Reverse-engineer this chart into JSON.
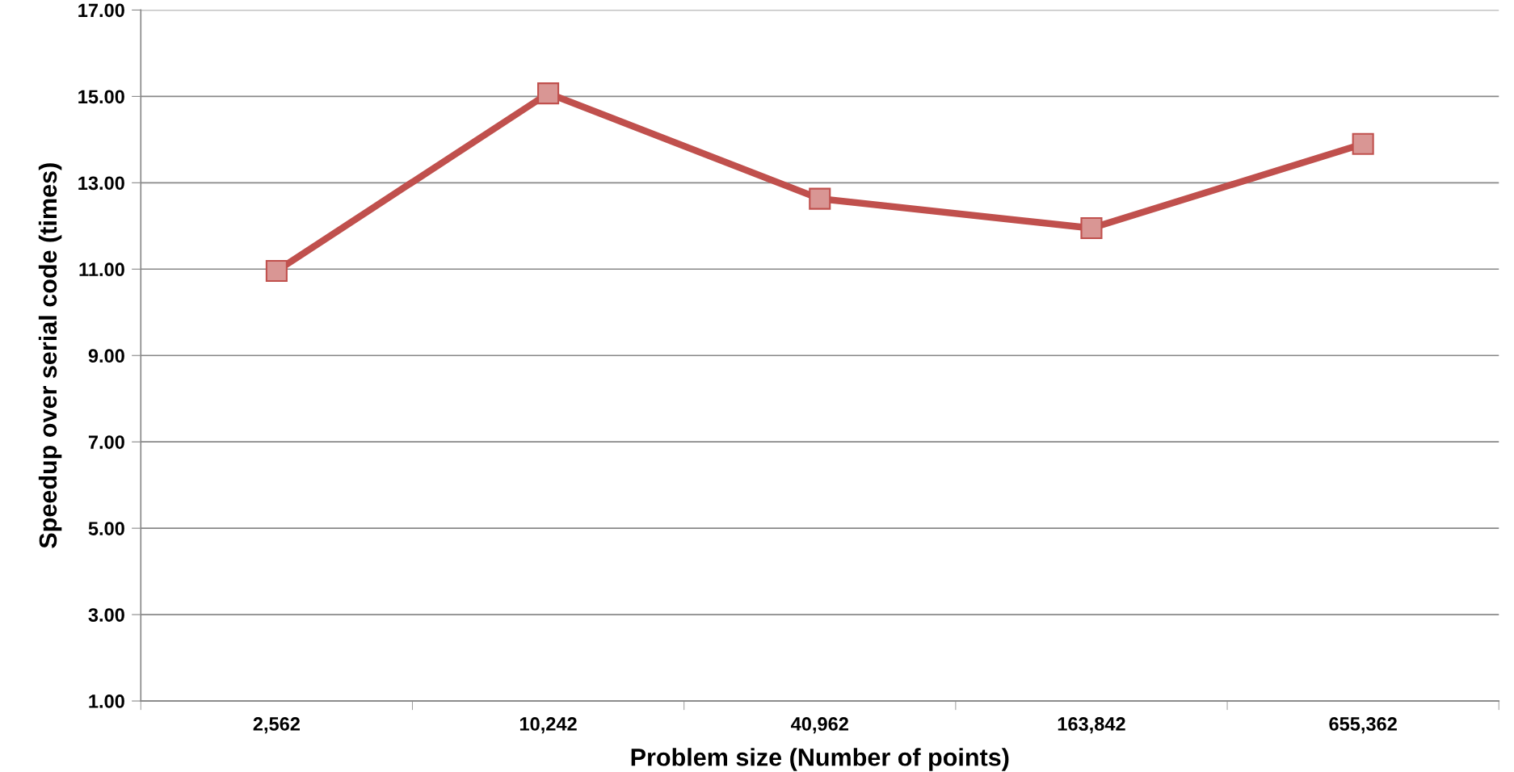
{
  "chart_data": {
    "type": "line",
    "xlabel": "Problem size (Number of points)",
    "ylabel": "Speedup over serial code (times)",
    "categories": [
      "2,562",
      "10,242",
      "40,962",
      "163,842",
      "655,362"
    ],
    "series": [
      {
        "color": "#c0504d",
        "values": [
          10.96,
          15.07,
          12.63,
          11.95,
          13.9
        ]
      }
    ],
    "ylim": [
      1,
      17
    ],
    "yticks": [
      {
        "value": 1,
        "label": "1.00"
      },
      {
        "value": 3,
        "label": "3.00"
      },
      {
        "value": 5,
        "label": "5.00"
      },
      {
        "value": 7,
        "label": "7.00"
      },
      {
        "value": 9,
        "label": "9.00"
      },
      {
        "value": 11,
        "label": "11.00"
      },
      {
        "value": 13,
        "label": "13.00"
      },
      {
        "value": 15,
        "label": "15.00"
      },
      {
        "value": 17,
        "label": "17.00"
      }
    ],
    "grid": "y",
    "marker": "square",
    "line_style": "solid"
  }
}
